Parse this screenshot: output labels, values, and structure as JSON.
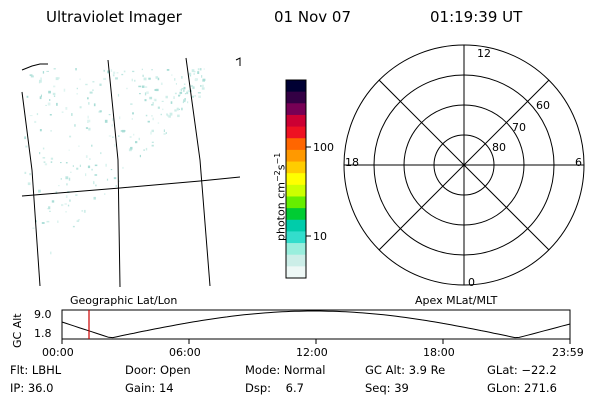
{
  "header": {
    "instrument": "Ultraviolet Imager",
    "date": "01 Nov 07",
    "time": "01:19:39 UT"
  },
  "colorbar": {
    "unit_label": "photon cm",
    "unit_sup1": "−2",
    "unit_mid": "s",
    "unit_sup2": "−1",
    "tick_100": "100",
    "tick_10": "10",
    "colors": [
      "#000033",
      "#330044",
      "#770055",
      "#cc0033",
      "#ee1122",
      "#ff6600",
      "#ff9900",
      "#ffcc00",
      "#ffff00",
      "#ccff00",
      "#66ee00",
      "#00cc33",
      "#00ccaa",
      "#33ddcc",
      "#99eedd",
      "#cceee8",
      "#eef8f6"
    ]
  },
  "polar": {
    "mlt_top": "12",
    "mlt_left": "18",
    "mlt_right": "6",
    "mlt_bottom": "0",
    "lat_60": "60",
    "lat_70": "70",
    "lat_80": "80"
  },
  "labels": {
    "geo": "Geographic Lat/Lon",
    "apex": "Apex MLat/MLT"
  },
  "altitude_plot": {
    "axis_label": "GC Alt",
    "ytick_top": "9.0",
    "ytick_bottom": "1.8",
    "xticks": [
      "00:00",
      "06:00",
      "12:00",
      "18:00",
      "23:59"
    ],
    "current_marker_color": "#cc0000"
  },
  "status": {
    "flt_label": "Flt:",
    "flt_value": "LBHL",
    "ip_label": "IP:",
    "ip_value": "36.0",
    "door_label": "Door:",
    "door_value": "Open",
    "gain_label": "Gain:",
    "gain_value": "14",
    "mode_label": "Mode:",
    "mode_value": "Normal",
    "dsp_label": "Dsp:",
    "dsp_value": "6.7",
    "gcalt_label": "GC Alt:",
    "gcalt_value": "3.9 Re",
    "seq_label": "Seq:",
    "seq_value": "39",
    "glat_label": "GLat:",
    "glat_value": "−22.2",
    "glon_label": "GLon:",
    "glon_value": "271.6"
  }
}
